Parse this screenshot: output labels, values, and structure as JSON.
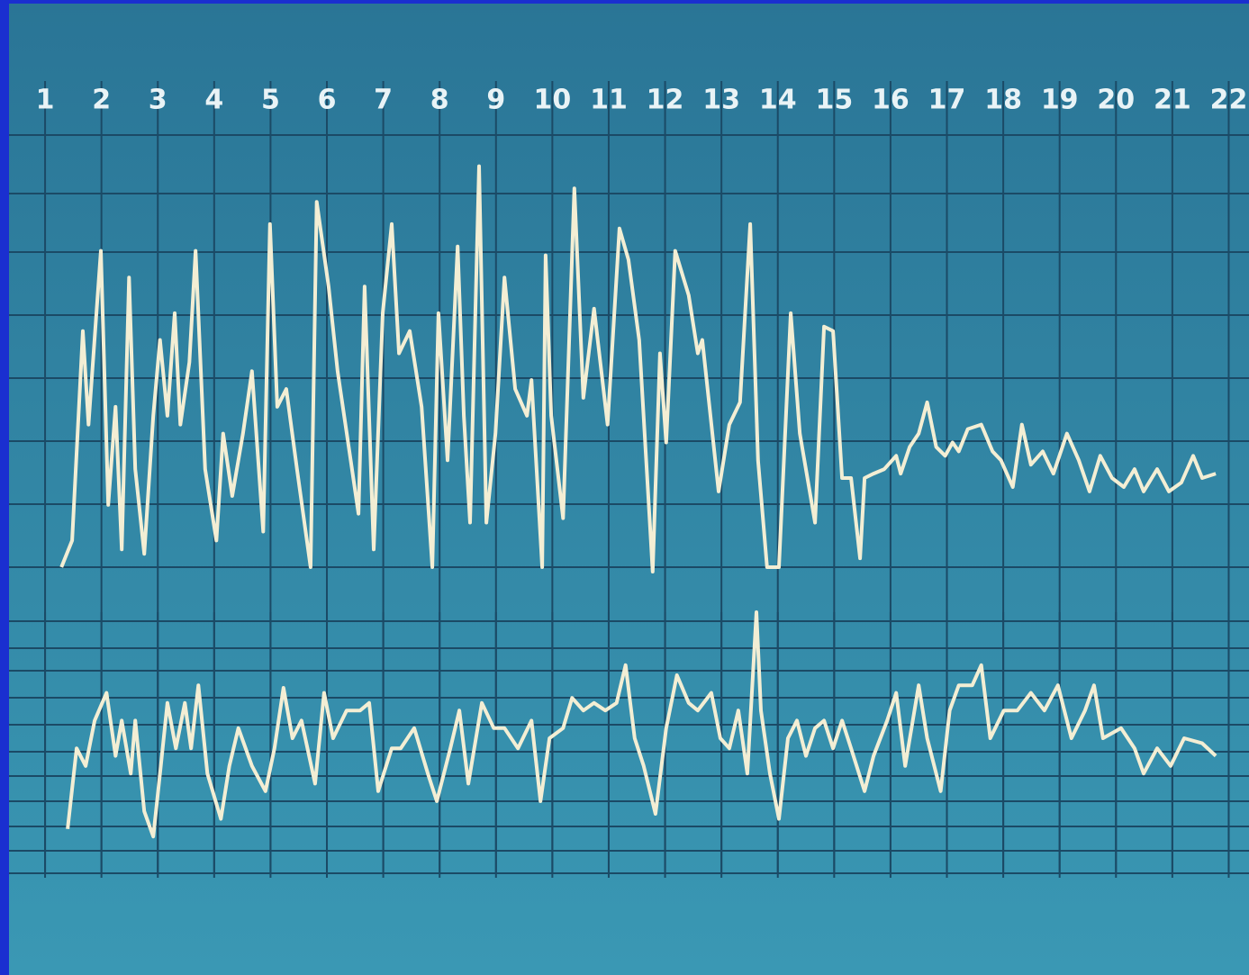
{
  "chart_data": [
    {
      "type": "line",
      "xlim": [
        0.36,
        22.36
      ],
      "ylim": [
        0,
        100
      ],
      "xticks": [
        1,
        2,
        3,
        4,
        5,
        6,
        7,
        8,
        9,
        10,
        11,
        12,
        13,
        14,
        15,
        16,
        17,
        18,
        19,
        20,
        21,
        22
      ],
      "x": [
        1.29,
        1.48,
        1.67,
        1.77,
        1.86,
        1.99,
        2.12,
        2.25,
        2.36,
        2.49,
        2.6,
        2.76,
        2.92,
        3.04,
        3.17,
        3.3,
        3.4,
        3.56,
        3.67,
        3.84,
        4.04,
        4.16,
        4.32,
        4.51,
        4.67,
        4.87,
        4.99,
        5.12,
        5.28,
        5.47,
        5.71,
        5.82,
        6.03,
        6.19,
        6.4,
        6.56,
        6.67,
        6.83,
        6.99,
        7.15,
        7.28,
        7.47,
        7.68,
        7.87,
        7.98,
        8.14,
        8.32,
        8.43,
        8.54,
        8.7,
        8.83,
        8.99,
        9.15,
        9.34,
        9.55,
        9.63,
        9.82,
        9.88,
        9.98,
        10.19,
        10.39,
        10.55,
        10.74,
        10.98,
        11.19,
        11.35,
        11.54,
        11.78,
        11.91,
        12.02,
        12.18,
        12.42,
        12.58,
        12.66,
        12.95,
        13.14,
        13.33,
        13.51,
        13.65,
        13.81,
        14.02,
        14.23,
        14.39,
        14.66,
        14.82,
        14.98,
        15.14,
        15.3,
        15.46,
        15.54,
        15.7,
        15.89,
        16.1,
        16.18,
        16.34,
        16.5,
        16.65,
        16.81,
        16.97,
        17.1,
        17.21,
        17.37,
        17.61,
        17.81,
        17.96,
        18.17,
        18.33,
        18.49,
        18.7,
        18.89,
        19.13,
        19.34,
        19.53,
        19.72,
        19.93,
        20.14,
        20.33,
        20.49,
        20.73,
        20.94,
        21.16,
        21.37,
        21.53,
        21.77
      ],
      "series": [
        {
          "color": "#f3eed4",
          "values": [
            1,
            7,
            54,
            33,
            49,
            72,
            15,
            37,
            5,
            66,
            23,
            4,
            35,
            52,
            35,
            58,
            33,
            47,
            72,
            23,
            7,
            31,
            17,
            31,
            45,
            9,
            78,
            37,
            41,
            23,
            1,
            83,
            64,
            45,
            27,
            13,
            64,
            5,
            58,
            78,
            49,
            54,
            37,
            1,
            58,
            25,
            73,
            35,
            11,
            91,
            11,
            31,
            66,
            41,
            35,
            43,
            1,
            71,
            35,
            12,
            86,
            39,
            59,
            33,
            77,
            70,
            52,
            0,
            49,
            29,
            72,
            62,
            49,
            52,
            18,
            33,
            38,
            78,
            25,
            1,
            1,
            58,
            31,
            11,
            55,
            54,
            21,
            21,
            3,
            21,
            22,
            23,
            26,
            22,
            28,
            31,
            38,
            28,
            26,
            29,
            27,
            32,
            33,
            27,
            25,
            19,
            33,
            24,
            27,
            22,
            31,
            25,
            18,
            26,
            21,
            19,
            23,
            18,
            23,
            18,
            20,
            26,
            21,
            22
          ]
        }
      ]
    },
    {
      "type": "line",
      "xlim": [
        0.36,
        22.36
      ],
      "ylim": [
        0,
        100
      ],
      "x": [
        1.4,
        1.56,
        1.72,
        1.88,
        2.09,
        2.25,
        2.36,
        2.52,
        2.6,
        2.76,
        2.92,
        3.04,
        3.17,
        3.32,
        3.48,
        3.59,
        3.72,
        3.88,
        4.12,
        4.27,
        4.43,
        4.67,
        4.91,
        5.07,
        5.23,
        5.39,
        5.55,
        5.79,
        5.95,
        6.11,
        6.35,
        6.59,
        6.75,
        6.91,
        7.15,
        7.31,
        7.55,
        7.79,
        7.95,
        8.19,
        8.35,
        8.51,
        8.75,
        8.96,
        9.15,
        9.39,
        9.63,
        9.79,
        9.95,
        10.19,
        10.35,
        10.55,
        10.74,
        10.94,
        11.14,
        11.3,
        11.46,
        11.62,
        11.83,
        12.02,
        12.21,
        12.42,
        12.58,
        12.82,
        12.98,
        13.14,
        13.3,
        13.46,
        13.62,
        13.7,
        13.86,
        14.02,
        14.18,
        14.34,
        14.5,
        14.66,
        14.82,
        14.98,
        15.14,
        15.3,
        15.54,
        15.7,
        15.94,
        16.1,
        16.26,
        16.5,
        16.65,
        16.89,
        17.05,
        17.21,
        17.45,
        17.61,
        17.77,
        18.01,
        18.25,
        18.49,
        18.73,
        18.97,
        19.21,
        19.45,
        19.61,
        19.77,
        20.09,
        20.33,
        20.49,
        20.73,
        20.97,
        21.21,
        21.53,
        21.77
      ],
      "series": [
        {
          "color": "#f3eed4",
          "values": [
            14,
            46,
            39,
            57,
            68,
            43,
            57,
            36,
            57,
            21,
            11,
            36,
            64,
            46,
            64,
            46,
            71,
            36,
            18,
            39,
            54,
            39,
            29,
            46,
            70,
            50,
            57,
            32,
            68,
            50,
            61,
            61,
            64,
            29,
            46,
            46,
            54,
            36,
            25,
            46,
            61,
            32,
            64,
            54,
            54,
            46,
            57,
            25,
            50,
            54,
            66,
            61,
            64,
            61,
            64,
            79,
            50,
            39,
            20,
            54,
            75,
            64,
            61,
            68,
            50,
            46,
            61,
            36,
            100,
            61,
            36,
            18,
            50,
            57,
            43,
            54,
            57,
            46,
            57,
            46,
            29,
            43,
            57,
            68,
            39,
            71,
            50,
            29,
            61,
            71,
            71,
            79,
            50,
            61,
            61,
            68,
            61,
            71,
            50,
            61,
            71,
            50,
            54,
            46,
            36,
            46,
            39,
            50,
            48,
            43
          ]
        }
      ]
    }
  ]
}
